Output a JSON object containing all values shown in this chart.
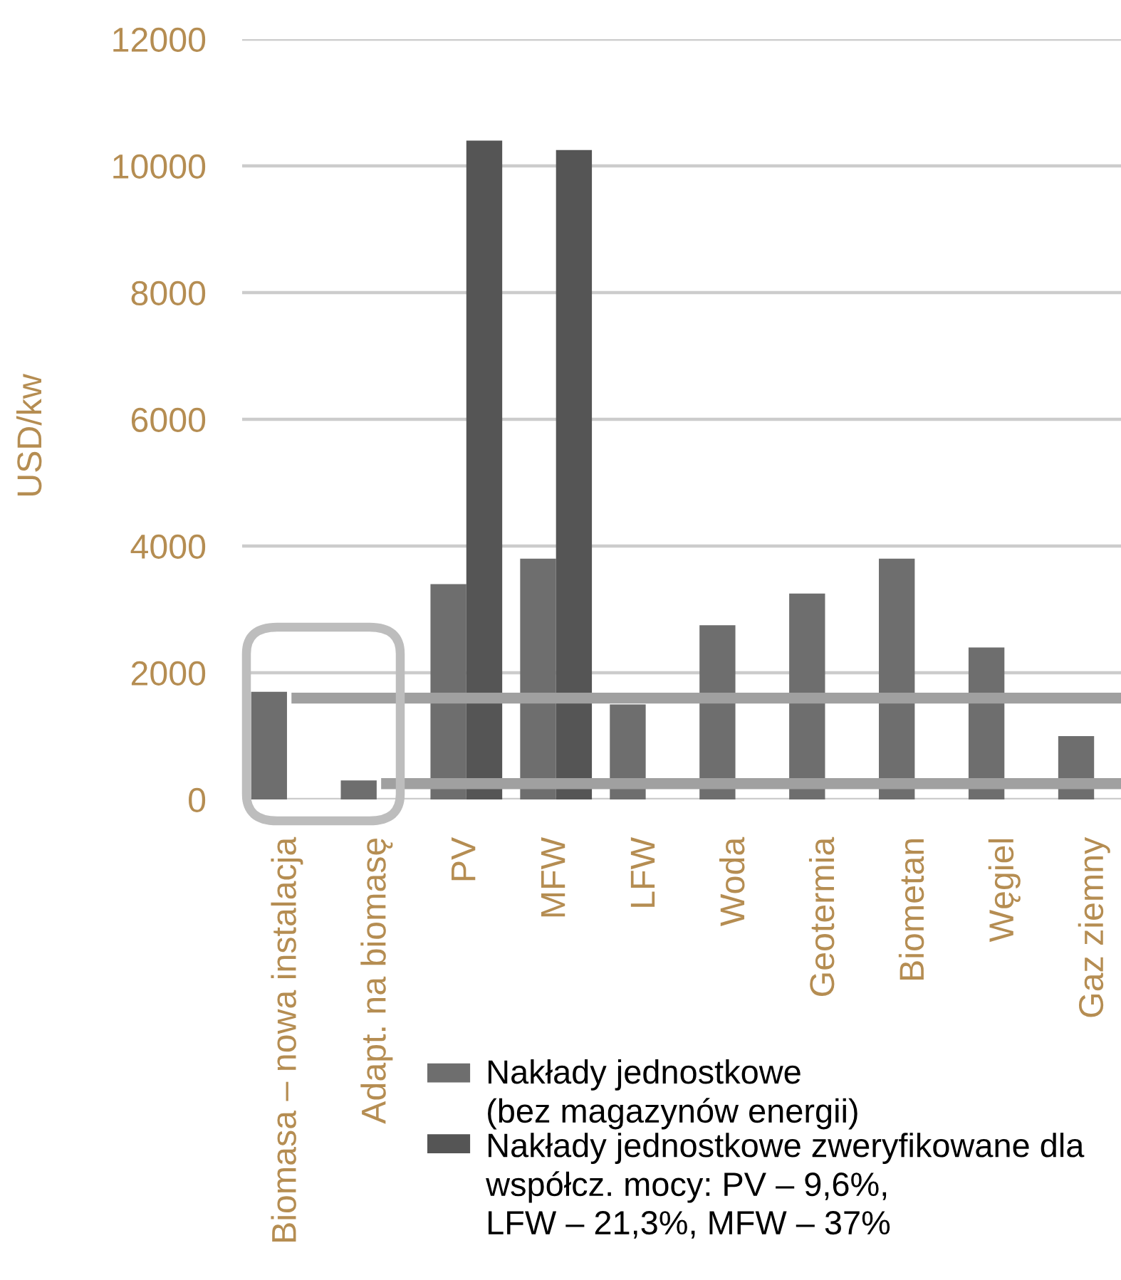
{
  "chart_data": {
    "type": "bar",
    "ylabel": "USD/kw",
    "categories": [
      "Biomasa – nowa instalacja",
      "Adapt. na biomasę",
      "PV",
      "MFW",
      "LFW",
      "Woda",
      "Geotermia",
      "Biometan",
      "Węgiel",
      "Gaz ziemny"
    ],
    "series": [
      {
        "name": "Nakłady jednostkowe\n(bez magazynów energii)",
        "color": "#6e6e6e",
        "values": [
          1700,
          300,
          3400,
          3800,
          1500,
          2750,
          3250,
          3800,
          2400,
          1000
        ]
      },
      {
        "name": "Nakłady jednostkowe zweryfikowane dla\nwspółcz. mocy: PV – 9,6%,\nLFW – 21,3%, MFW – 37%",
        "color": "#555555",
        "values": [
          null,
          null,
          10400,
          10250,
          null,
          null,
          null,
          null,
          null,
          null
        ]
      }
    ],
    "ylim": [
      0,
      12000
    ],
    "yticks": [
      0,
      2000,
      4000,
      6000,
      8000,
      10000,
      12000
    ],
    "grid": "y",
    "legend": "bottom",
    "ref_lines": [
      {
        "axis": "y",
        "value": 1600,
        "color": "#a0a0a0"
      },
      {
        "axis": "y",
        "value": 250,
        "color": "#a0a0a0"
      }
    ]
  }
}
